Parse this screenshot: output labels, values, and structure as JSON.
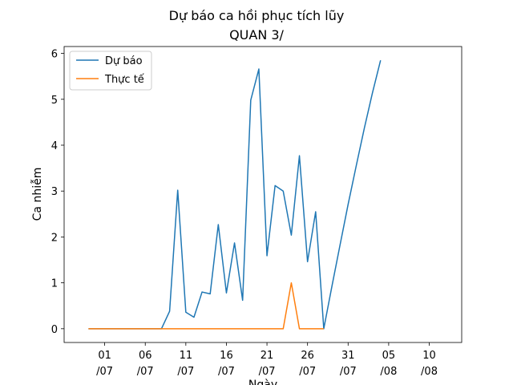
{
  "chart_data": {
    "type": "line",
    "title": "Dự báo ca hồi phục tích lũy",
    "subtitle": "QUAN 3/",
    "xlabel": "Ngày",
    "ylabel": "Ca nhiễm",
    "ylim": [
      -0.3,
      6.15
    ],
    "xlim": [
      "2021-06-26",
      "2021-08-14"
    ],
    "yticks": [
      0,
      1,
      2,
      3,
      4,
      5,
      6
    ],
    "xticks": [
      {
        "date": "2021-07-01",
        "line1": "01",
        "line2": "/07"
      },
      {
        "date": "2021-07-06",
        "line1": "06",
        "line2": "/07"
      },
      {
        "date": "2021-07-11",
        "line1": "11",
        "line2": "/07"
      },
      {
        "date": "2021-07-16",
        "line1": "16",
        "line2": "/07"
      },
      {
        "date": "2021-07-21",
        "line1": "21",
        "line2": "/07"
      },
      {
        "date": "2021-07-26",
        "line1": "26",
        "line2": "/07"
      },
      {
        "date": "2021-07-31",
        "line1": "31",
        "line2": "/07"
      },
      {
        "date": "2021-08-05",
        "line1": "05",
        "line2": "/08"
      },
      {
        "date": "2021-08-10",
        "line1": "10",
        "line2": "/08"
      }
    ],
    "legend_position": "top-left",
    "grid": false,
    "series": [
      {
        "name": "Dự báo",
        "color": "#1f77b4",
        "points": [
          [
            "2021-06-29",
            0
          ],
          [
            "2021-06-30",
            0
          ],
          [
            "2021-07-01",
            0
          ],
          [
            "2021-07-02",
            0
          ],
          [
            "2021-07-03",
            0
          ],
          [
            "2021-07-04",
            0
          ],
          [
            "2021-07-05",
            0
          ],
          [
            "2021-07-06",
            0
          ],
          [
            "2021-07-07",
            0
          ],
          [
            "2021-07-08",
            0
          ],
          [
            "2021-07-09",
            0.38
          ],
          [
            "2021-07-10",
            3.02
          ],
          [
            "2021-07-11",
            0.36
          ],
          [
            "2021-07-12",
            0.25
          ],
          [
            "2021-07-13",
            0.8
          ],
          [
            "2021-07-14",
            0.76
          ],
          [
            "2021-07-15",
            2.27
          ],
          [
            "2021-07-16",
            0.78
          ],
          [
            "2021-07-17",
            1.87
          ],
          [
            "2021-07-18",
            0.62
          ],
          [
            "2021-07-19",
            4.98
          ],
          [
            "2021-07-20",
            5.66
          ],
          [
            "2021-07-21",
            1.59
          ],
          [
            "2021-07-22",
            3.12
          ],
          [
            "2021-07-23",
            3.0
          ],
          [
            "2021-07-24",
            2.04
          ],
          [
            "2021-07-25",
            3.77
          ],
          [
            "2021-07-26",
            1.46
          ],
          [
            "2021-07-27",
            2.55
          ],
          [
            "2021-07-28",
            0
          ],
          [
            "2021-07-29",
            0.92
          ],
          [
            "2021-07-30",
            1.82
          ],
          [
            "2021-07-31",
            2.71
          ],
          [
            "2021-08-01",
            3.55
          ],
          [
            "2021-08-02",
            4.37
          ],
          [
            "2021-08-03",
            5.14
          ],
          [
            "2021-08-04",
            5.85
          ]
        ]
      },
      {
        "name": "Thực tế",
        "color": "#ff7f0e",
        "points": [
          [
            "2021-06-29",
            0
          ],
          [
            "2021-06-30",
            0
          ],
          [
            "2021-07-01",
            0
          ],
          [
            "2021-07-02",
            0
          ],
          [
            "2021-07-03",
            0
          ],
          [
            "2021-07-04",
            0
          ],
          [
            "2021-07-05",
            0
          ],
          [
            "2021-07-06",
            0
          ],
          [
            "2021-07-07",
            0
          ],
          [
            "2021-07-08",
            0
          ],
          [
            "2021-07-09",
            0
          ],
          [
            "2021-07-10",
            0
          ],
          [
            "2021-07-11",
            0
          ],
          [
            "2021-07-12",
            0
          ],
          [
            "2021-07-13",
            0
          ],
          [
            "2021-07-14",
            0
          ],
          [
            "2021-07-15",
            0
          ],
          [
            "2021-07-16",
            0
          ],
          [
            "2021-07-17",
            0
          ],
          [
            "2021-07-18",
            0
          ],
          [
            "2021-07-19",
            0
          ],
          [
            "2021-07-20",
            0
          ],
          [
            "2021-07-21",
            0
          ],
          [
            "2021-07-22",
            0
          ],
          [
            "2021-07-23",
            0
          ],
          [
            "2021-07-24",
            1
          ],
          [
            "2021-07-25",
            0
          ],
          [
            "2021-07-26",
            0
          ],
          [
            "2021-07-27",
            0
          ],
          [
            "2021-07-28",
            0
          ]
        ]
      }
    ]
  }
}
